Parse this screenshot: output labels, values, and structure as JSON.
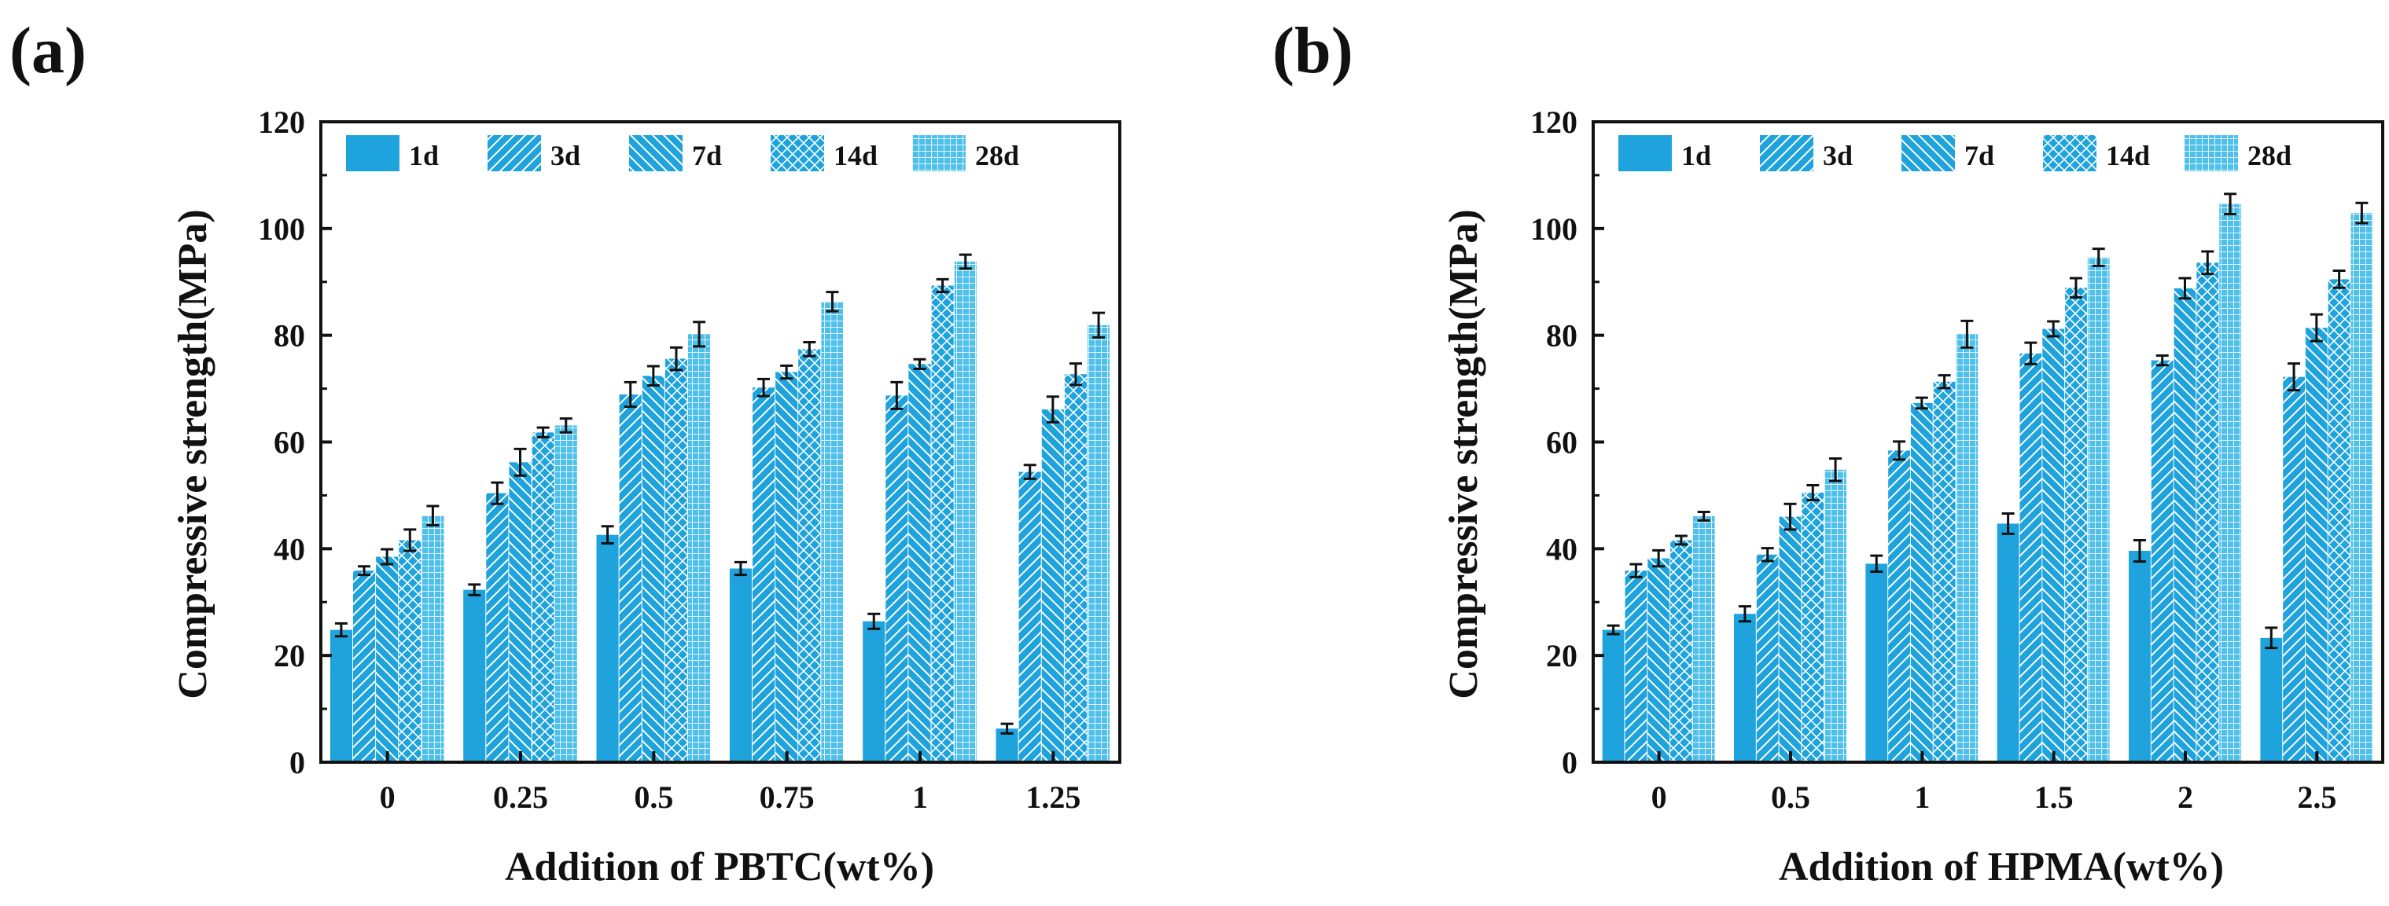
{
  "colors": {
    "bar_fill": "#1fa3dc",
    "bar_fill_28d": "#4fc0ea",
    "pattern_line": "#ffffff",
    "axis": "#111111"
  },
  "series_patterns": [
    "solid",
    "diagonal-up",
    "diagonal-down",
    "crosshatch",
    "grid"
  ],
  "chart_data": [
    {
      "panel_label": "(a)",
      "type": "bar",
      "title": "",
      "xlabel": "Addition of PBTC(wt%)",
      "ylabel": "Compressive strength(MPa)",
      "ylim": [
        0,
        120
      ],
      "yticks": [
        0,
        20,
        40,
        60,
        80,
        100,
        120
      ],
      "legend_position": "top-left",
      "categories": [
        "0",
        "0.25",
        "0.5",
        "0.75",
        "1",
        "1.25"
      ],
      "series": [
        {
          "name": "1d",
          "values": [
            24.8,
            32.3,
            42.6,
            36.3,
            26.4,
            6.3
          ],
          "errors": [
            1.2,
            1.0,
            1.6,
            1.2,
            1.4,
            0.9
          ]
        },
        {
          "name": "3d",
          "values": [
            35.9,
            50.4,
            68.9,
            70.2,
            68.7,
            54.4
          ],
          "errors": [
            0.8,
            2.0,
            2.3,
            1.6,
            2.5,
            1.3
          ]
        },
        {
          "name": "7d",
          "values": [
            38.5,
            56.2,
            72.4,
            73.1,
            74.6,
            66.1
          ],
          "errors": [
            1.4,
            2.5,
            1.8,
            1.2,
            0.9,
            2.4
          ]
        },
        {
          "name": "14d",
          "values": [
            41.6,
            61.8,
            75.6,
            77.4,
            89.3,
            72.7
          ],
          "errors": [
            2.0,
            0.9,
            2.1,
            1.3,
            1.2,
            2.0
          ]
        },
        {
          "name": "28d",
          "values": [
            46.2,
            63.1,
            80.2,
            86.3,
            93.8,
            81.9
          ],
          "errors": [
            1.8,
            1.3,
            2.3,
            1.8,
            1.3,
            2.3
          ]
        }
      ]
    },
    {
      "panel_label": "(b)",
      "type": "bar",
      "title": "",
      "xlabel": "Addition of HPMA(wt%)",
      "ylabel": "Compressive strength(MPa)",
      "ylim": [
        0,
        120
      ],
      "yticks": [
        0,
        20,
        40,
        60,
        80,
        100,
        120
      ],
      "legend_position": "top-left",
      "categories": [
        "0",
        "0.5",
        "1",
        "1.5",
        "2",
        "2.5"
      ],
      "series": [
        {
          "name": "1d",
          "values": [
            24.8,
            27.8,
            37.2,
            44.7,
            39.6,
            23.3
          ],
          "errors": [
            0.8,
            1.4,
            1.5,
            1.9,
            2.0,
            1.9
          ]
        },
        {
          "name": "3d",
          "values": [
            35.9,
            38.9,
            58.4,
            76.6,
            75.3,
            72.2
          ],
          "errors": [
            1.2,
            1.2,
            1.7,
            2.0,
            0.9,
            2.5
          ]
        },
        {
          "name": "7d",
          "values": [
            38.2,
            46.0,
            67.3,
            81.2,
            88.8,
            81.4
          ],
          "errors": [
            1.5,
            2.4,
            1.0,
            1.4,
            1.9,
            2.5
          ]
        },
        {
          "name": "14d",
          "values": [
            41.6,
            50.5,
            71.3,
            88.9,
            93.6,
            90.5
          ],
          "errors": [
            0.8,
            1.4,
            1.2,
            1.8,
            2.1,
            1.6
          ]
        },
        {
          "name": "28d",
          "values": [
            46.1,
            54.8,
            80.2,
            94.6,
            104.6,
            102.9
          ],
          "errors": [
            0.8,
            2.1,
            2.5,
            1.6,
            1.9,
            1.9
          ]
        }
      ]
    }
  ]
}
